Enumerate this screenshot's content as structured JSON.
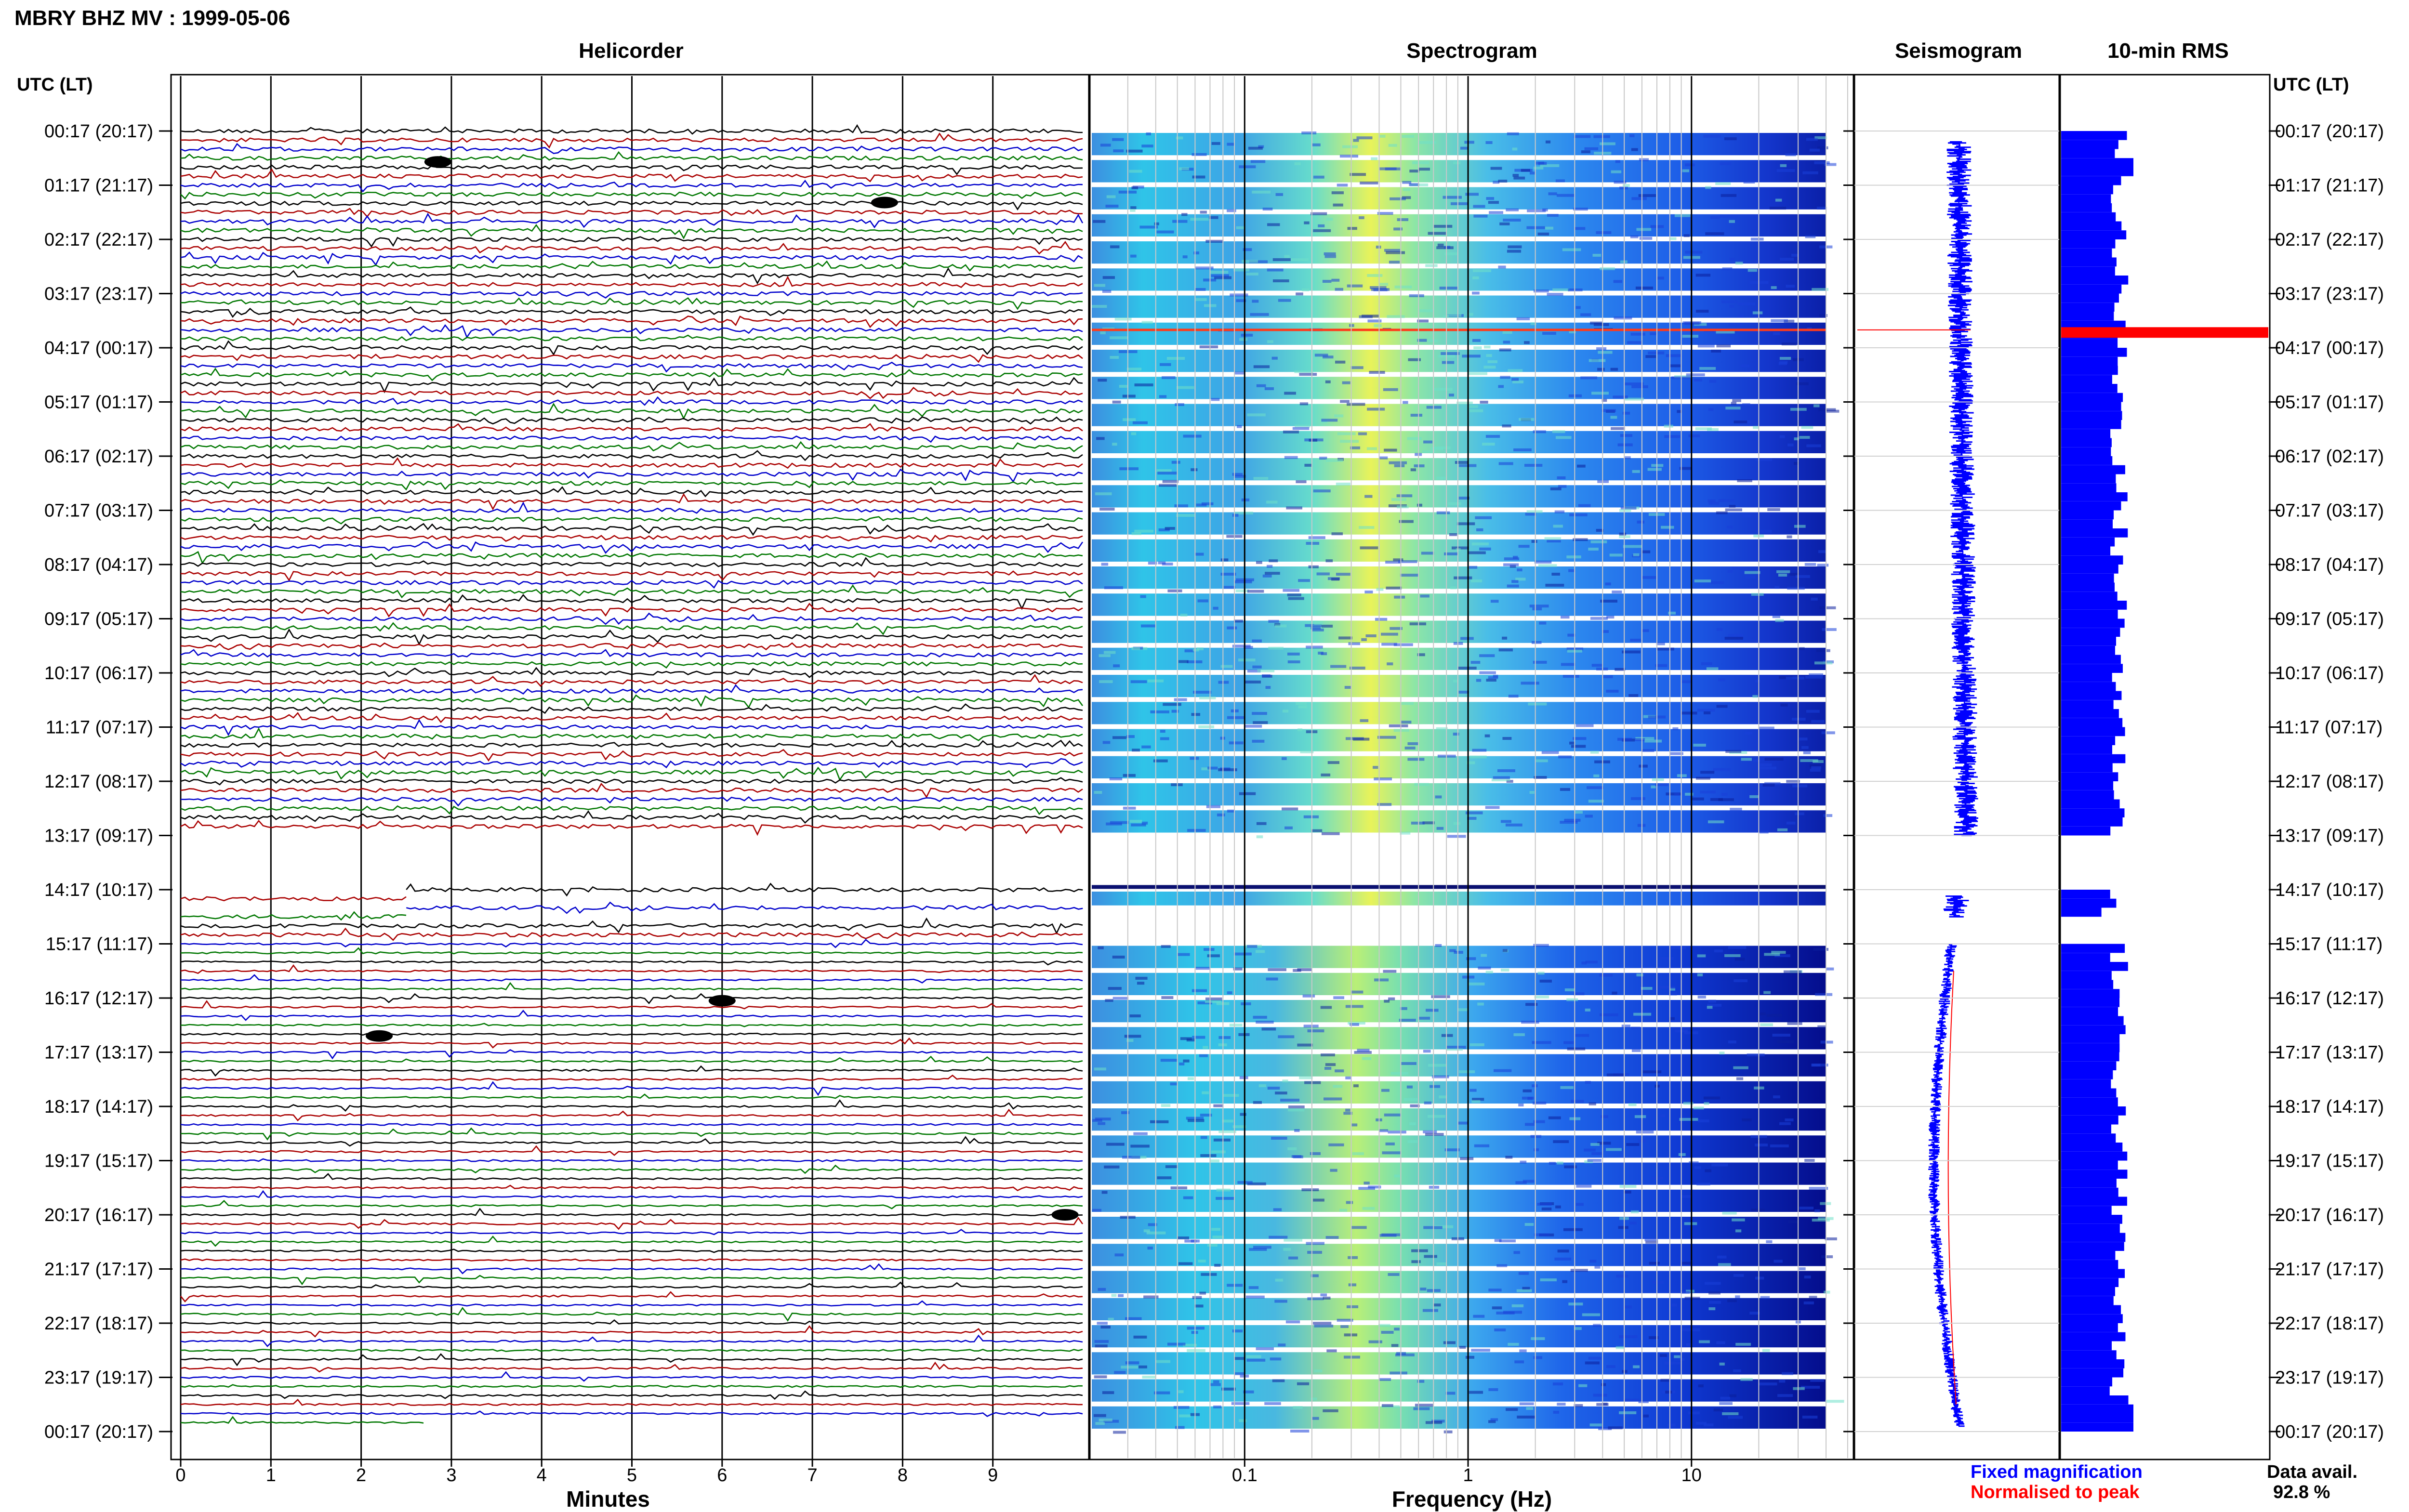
{
  "header": {
    "title": "MBRY BHZ MV : 1999-05-06",
    "utc_label_left": "UTC (LT)",
    "utc_label_right": "UTC (LT)"
  },
  "panels": {
    "helicorder": "Helicorder",
    "spectrogram": "Spectrogram",
    "seismogram": "Seismogram",
    "rms": "10-min RMS"
  },
  "axes": {
    "helicorder_xlabel": "Minutes",
    "spectrogram_xlabel": "Frequency (Hz)"
  },
  "legend": {
    "fixed": "Fixed magnification",
    "fixed_color": "#0000ff",
    "normalised": "Normalised to peak",
    "normalised_color": "#ff0000",
    "data_avail_label": "Data avail.",
    "data_avail_value": "92.8 %"
  },
  "colors": {
    "trace_black": "#000000",
    "trace_red": "#aa0000",
    "trace_blue": "#0000cc",
    "trace_green": "#007700",
    "rms_fill": "#0000ff",
    "rms_peak": "#ff0000"
  },
  "chart_data": [
    {
      "type": "line",
      "panel": "helicorder",
      "xlabel": "Minutes",
      "xlim": [
        0,
        10
      ],
      "x_ticks": [
        "0",
        "1",
        "2",
        "3",
        "4",
        "5",
        "6",
        "7",
        "8",
        "9"
      ],
      "time_labels": [
        "00:17 (20:17)",
        "01:17 (21:17)",
        "02:17 (22:17)",
        "03:17 (23:17)",
        "04:17 (00:17)",
        "05:17 (01:17)",
        "06:17 (02:17)",
        "07:17 (03:17)",
        "08:17 (04:17)",
        "09:17 (05:17)",
        "10:17 (06:17)",
        "11:17 (07:17)",
        "12:17 (08:17)",
        "13:17 (09:17)",
        "14:17 (10:17)",
        "15:17 (11:17)",
        "16:17 (12:17)",
        "17:17 (13:17)",
        "18:17 (14:17)",
        "19:17 (15:17)",
        "20:17 (16:17)",
        "21:17 (17:17)",
        "22:17 (18:17)",
        "23:17 (19:17)",
        "00:17 (20:17)"
      ],
      "traces_per_hour": 6,
      "data_gap_utc": [
        "13:17",
        "15:17"
      ]
    },
    {
      "type": "heatmap",
      "panel": "spectrogram",
      "xlabel": "Frequency (Hz)",
      "x_scale": "log",
      "x_ticks": [
        "0.1",
        "1",
        "10"
      ],
      "peak_band_hz": [
        0.2,
        0.3
      ]
    },
    {
      "type": "line",
      "panel": "seismogram"
    },
    {
      "type": "bar",
      "panel": "rms",
      "orientation": "horizontal",
      "peak_time_utc": "03:57"
    }
  ]
}
